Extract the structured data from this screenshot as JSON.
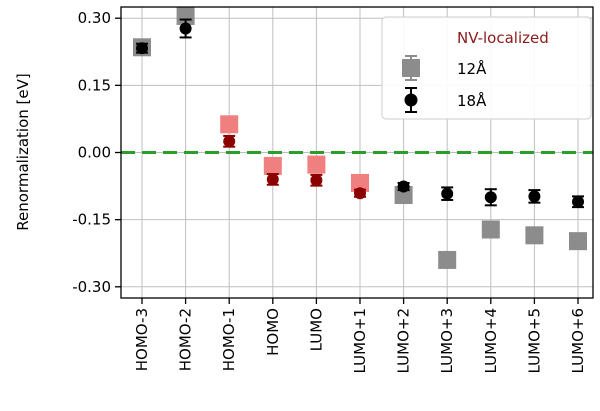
{
  "chart_data": {
    "type": "scatter",
    "ylabel": "Renormalization [eV]",
    "xlabel": "",
    "title": "",
    "ylim": [
      -0.325,
      0.325
    ],
    "yticks": [
      0.3,
      0.15,
      0.0,
      -0.15,
      -0.3
    ],
    "ytick_labels": [
      "0.30",
      "0.15",
      "0.00",
      "-0.15",
      "-0.30"
    ],
    "categories": [
      "HOMO-3",
      "HOMO-2",
      "HOMO-1",
      "HOMO",
      "LUMO",
      "LUMO+1",
      "LUMO+2",
      "LUMO+3",
      "LUMO+4",
      "LUMO+5",
      "LUMO+6"
    ],
    "grid": true,
    "zero_line": {
      "value": 0.0,
      "color": "#2a9d2a",
      "style": "dashed"
    },
    "nv_localized_indices": [
      2,
      3,
      4,
      5
    ],
    "colors": {
      "series12_default": "#8c8c8c",
      "series12_nv": "#f08080",
      "series18_default": "#000000",
      "series18_nv": "#8b0000",
      "legend_title": "#8b1a1a",
      "grid": "#bfbfbf"
    },
    "legend": {
      "title": "NV-localized",
      "placement": "top-right",
      "entries": [
        "12Å",
        "18Å"
      ]
    },
    "series": [
      {
        "name": "12Å",
        "marker": "square",
        "values": [
          0.235,
          0.305,
          0.063,
          -0.03,
          -0.027,
          -0.068,
          -0.095,
          -0.24,
          -0.172,
          -0.185,
          -0.198
        ],
        "errors": [
          0.012,
          0.01,
          0.01,
          0.01,
          0.01,
          0.01,
          0.01,
          0.01,
          0.01,
          0.01,
          0.01
        ]
      },
      {
        "name": "18Å",
        "marker": "circle",
        "values": [
          0.233,
          0.277,
          0.025,
          -0.06,
          -0.062,
          -0.091,
          -0.076,
          -0.092,
          -0.1,
          -0.098,
          -0.11
        ],
        "errors": [
          0.01,
          0.02,
          0.012,
          0.012,
          0.012,
          0.008,
          0.008,
          0.014,
          0.018,
          0.014,
          0.012
        ]
      }
    ]
  }
}
